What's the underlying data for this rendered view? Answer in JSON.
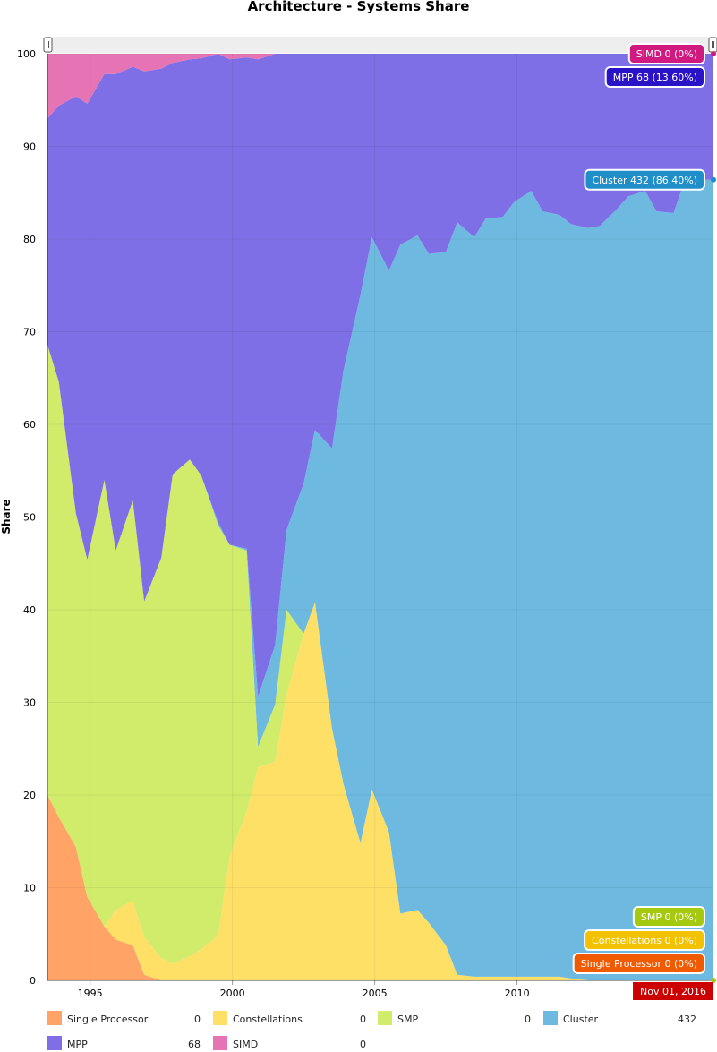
{
  "chart_data": {
    "type": "area",
    "stacked": true,
    "title": "Architecture - Systems Share",
    "ylabel": "Share",
    "xlabel": "",
    "ylim": [
      0,
      100
    ],
    "yticks": [
      0,
      10,
      20,
      30,
      40,
      50,
      60,
      70,
      80,
      90,
      100
    ],
    "xticks": [
      1995,
      2000,
      2005,
      2010
    ],
    "grid": true,
    "x": [
      1993.5,
      1993.9,
      1994.5,
      1994.9,
      1995.5,
      1995.9,
      1996.5,
      1996.9,
      1997.5,
      1997.9,
      1998.5,
      1998.9,
      1999.5,
      1999.9,
      2000.5,
      2000.9,
      2001.5,
      2001.9,
      2002.5,
      2002.9,
      2003.5,
      2003.9,
      2004.5,
      2004.9,
      2005.5,
      2005.9,
      2006.5,
      2006.9,
      2007.5,
      2007.9,
      2008.5,
      2008.9,
      2009.5,
      2009.9,
      2010.5,
      2010.9,
      2011.5,
      2011.9,
      2012.5,
      2012.9,
      2013.5,
      2013.9,
      2014.5,
      2014.9,
      2015.5,
      2015.9,
      2016.5,
      2016.9
    ],
    "series": [
      {
        "name": "Single Processor",
        "color": "#ffa366",
        "values": [
          20,
          17.6,
          14.4,
          9,
          5.8,
          4.4,
          3.8,
          0.6,
          0,
          0,
          0,
          0,
          0,
          0,
          0,
          0,
          0,
          0,
          0,
          0,
          0,
          0,
          0,
          0,
          0,
          0,
          0,
          0,
          0,
          0,
          0,
          0,
          0,
          0,
          0,
          0,
          0,
          0,
          0,
          0,
          0,
          0,
          0,
          0,
          0,
          0,
          0,
          0
        ]
      },
      {
        "name": "Constellations",
        "color": "#ffe066",
        "values": [
          0,
          0,
          0,
          0,
          0,
          3.2,
          4.8,
          4.1,
          2.4,
          1.8,
          2.6,
          3.3,
          4.9,
          13.4,
          18.2,
          23,
          23.6,
          30.8,
          37.4,
          40.8,
          27.2,
          21.2,
          14.8,
          20.6,
          16,
          7.2,
          7.6,
          6.2,
          3.8,
          0.6,
          0.4,
          0.4,
          0.4,
          0.4,
          0.4,
          0.4,
          0.4,
          0.2,
          0,
          0,
          0,
          0,
          0,
          0,
          0,
          0,
          0,
          0
        ]
      },
      {
        "name": "SMP",
        "color": "#d1eb6b",
        "values": [
          48.6,
          47,
          36,
          36.4,
          48.2,
          38.8,
          43.2,
          36.2,
          43.2,
          52.8,
          53.6,
          51.2,
          44.2,
          33.6,
          28.2,
          2.2,
          6.2,
          9.2,
          0,
          0,
          0,
          0,
          0,
          0,
          0,
          0,
          0,
          0,
          0,
          0,
          0,
          0,
          0,
          0,
          0,
          0,
          0,
          0,
          0,
          0,
          0,
          0,
          0,
          0,
          0,
          0,
          0,
          0
        ]
      },
      {
        "name": "Cluster",
        "color": "#6db9e0",
        "values": [
          0,
          0,
          0,
          0,
          0,
          0,
          0,
          0,
          0,
          0,
          0,
          0,
          0.3,
          0,
          0.2,
          5.4,
          6.4,
          8.6,
          16.2,
          18.6,
          30.2,
          44.6,
          59.2,
          59.6,
          60.6,
          72.2,
          72.8,
          72.2,
          74.8,
          81.2,
          79.8,
          81.8,
          82,
          83.6,
          84.8,
          82.6,
          82.2,
          81.4,
          81.2,
          81.4,
          83.2,
          84.6,
          85.2,
          83,
          82.8,
          86.4,
          86.4,
          86.4
        ]
      },
      {
        "name": "MPP",
        "color": "#7f6fe6",
        "values": [
          24.4,
          29.8,
          45,
          49.2,
          43.8,
          51.4,
          46.8,
          57.2,
          52.8,
          44.4,
          43.2,
          45,
          50.6,
          52.4,
          53,
          68.8,
          63.8,
          51.4,
          46.4,
          40.6,
          42.6,
          34.2,
          26,
          19.8,
          23.4,
          20.6,
          19.6,
          21.6,
          21.4,
          18.2,
          19.8,
          17.8,
          17.6,
          16,
          14.8,
          17,
          17.4,
          18.4,
          18.8,
          18.6,
          16.8,
          15.4,
          14.8,
          17,
          17.2,
          13.6,
          13.6,
          13.6
        ]
      },
      {
        "name": "SIMD",
        "color": "#e673b3",
        "values": [
          7,
          5.6,
          4.6,
          5.4,
          2.2,
          2.2,
          1.4,
          1.9,
          1.6,
          1,
          0.6,
          0.5,
          0,
          0.6,
          0.4,
          0.6,
          0,
          0,
          0,
          0,
          0,
          0,
          0,
          0,
          0,
          0,
          0,
          0,
          0,
          0,
          0,
          0,
          0,
          0,
          0,
          0,
          0,
          0,
          0,
          0,
          0,
          0,
          0,
          0,
          0,
          0,
          0,
          0
        ]
      }
    ],
    "tooltips": [
      {
        "series": "SIMD",
        "text": "SIMD 0 (0%)",
        "color": "#d11a80",
        "value": 100
      },
      {
        "series": "MPP",
        "text": "MPP 68 (13.60%)",
        "color": "#2a12c6",
        "value": 100
      },
      {
        "series": "Cluster",
        "text": "Cluster 432 (86.40%)",
        "color": "#1f8ec9",
        "value": 86.4
      },
      {
        "series": "SMP",
        "text": "SMP 0 (0%)",
        "color": "#a5c90f",
        "value": 0
      },
      {
        "series": "Constellations",
        "text": "Constellations 0 (0%)",
        "color": "#f2c100",
        "value": 0
      },
      {
        "series": "Single Processor",
        "text": "Single Processor 0 (0%)",
        "color": "#f05a00",
        "value": 0
      }
    ],
    "cursor_label": {
      "text": "Nov 01, 2016",
      "color": "#cc0000"
    },
    "legend": [
      {
        "name": "Single Processor",
        "value": "0",
        "color": "#ffa366"
      },
      {
        "name": "Constellations",
        "value": "0",
        "color": "#ffe066"
      },
      {
        "name": "SMP",
        "value": "0",
        "color": "#d1eb6b"
      },
      {
        "name": "Cluster",
        "value": "432",
        "color": "#6db9e0"
      },
      {
        "name": "MPP",
        "value": "68",
        "color": "#7f6fe6"
      },
      {
        "name": "SIMD",
        "value": "0",
        "color": "#e673b3"
      }
    ]
  }
}
